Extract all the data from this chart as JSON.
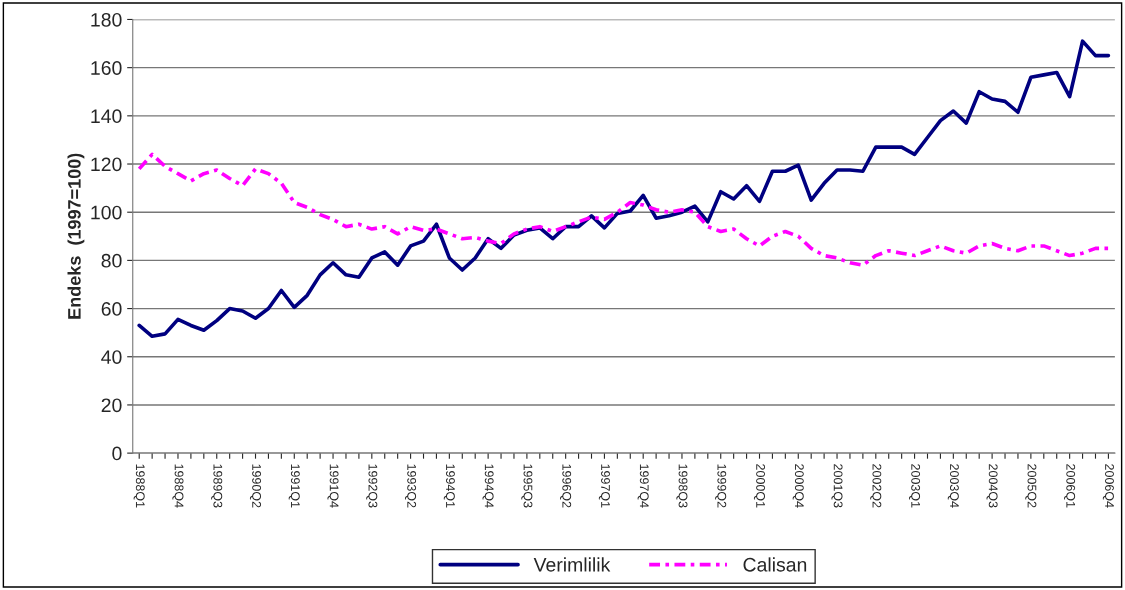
{
  "chart_data": {
    "type": "line",
    "ylabel": "Endeks  (1997=100)",
    "categories": [
      "1988Q1",
      null,
      null,
      "1988Q4",
      null,
      null,
      "1989Q3",
      null,
      null,
      "1990Q2",
      null,
      null,
      "1991Q1",
      null,
      null,
      "1991Q4",
      null,
      null,
      "1992Q3",
      null,
      null,
      "1993Q2",
      null,
      null,
      "1994Q1",
      null,
      null,
      "1994Q4",
      null,
      null,
      "1995Q3",
      null,
      null,
      "1996Q2",
      null,
      null,
      "1997Q1",
      null,
      null,
      "1997Q4",
      null,
      null,
      "1998Q3",
      null,
      null,
      "1999Q2",
      null,
      null,
      "2000Q1",
      null,
      null,
      "2000Q4",
      null,
      null,
      "2001Q3",
      null,
      null,
      "2002Q2",
      null,
      null,
      "2003Q1",
      null,
      null,
      "2003Q4",
      null,
      null,
      "2004Q3",
      null,
      null,
      "2005Q2",
      null,
      null,
      "2006Q1",
      null,
      null,
      "2006Q4"
    ],
    "series": [
      {
        "name": "Verimlilik",
        "color": "#000080",
        "line_style": "solid",
        "values": [
          53,
          48.5,
          49.5,
          55.5,
          53,
          51,
          55,
          60,
          59,
          56,
          60,
          67.5,
          60.5,
          65.5,
          74,
          79,
          74,
          73,
          81,
          83.5,
          78,
          86,
          88,
          95,
          81,
          76,
          81,
          89,
          85,
          90.5,
          92.5,
          93.5,
          89,
          94,
          94,
          98.5,
          93.5,
          99.5,
          100.5,
          107,
          97.5,
          98.5,
          100,
          102.5,
          96,
          108.5,
          105.5,
          111,
          104.5,
          117,
          117,
          119.5,
          105,
          112,
          117.5,
          117.5,
          117,
          127,
          127,
          127,
          124,
          131,
          138,
          142,
          137,
          150,
          147,
          146,
          141.5,
          156,
          157,
          158,
          148,
          171,
          165,
          165
        ]
      },
      {
        "name": "Calisan",
        "color": "#ff00ff",
        "line_style": "dashed",
        "values": [
          118,
          124,
          119,
          116,
          113,
          116,
          117.5,
          114,
          111,
          118,
          116,
          112,
          104,
          102,
          99,
          97,
          94,
          95,
          93,
          94,
          91,
          94,
          92.5,
          93,
          91,
          89,
          89.5,
          88,
          87,
          91,
          93,
          94,
          92,
          94,
          96,
          98,
          97,
          100,
          104,
          103,
          101,
          100,
          101,
          100,
          94,
          92,
          93,
          89,
          86,
          90,
          92,
          90,
          85,
          82,
          81,
          79,
          78,
          82,
          84,
          83,
          82,
          84,
          86,
          84,
          83,
          86,
          87,
          85,
          84,
          86,
          86,
          84,
          82,
          83,
          85,
          85
        ]
      }
    ],
    "ylim": [
      0,
      180
    ],
    "yticks": [
      0,
      20,
      40,
      60,
      80,
      100,
      120,
      140,
      160,
      180
    ],
    "grid": "y",
    "legend": "bottom"
  }
}
